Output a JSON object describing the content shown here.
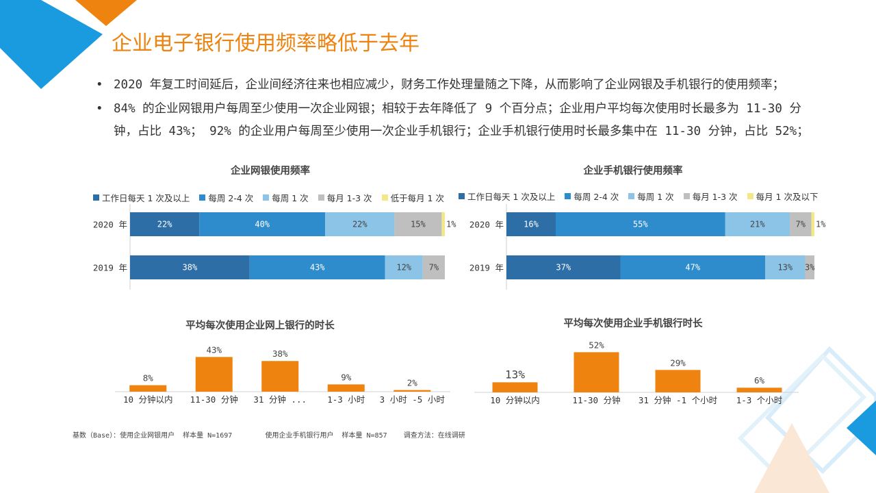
{
  "title": "企业电子银行使用频率略低于去年",
  "bullets": [
    {
      "dot": "•",
      "text": "2020 年复工时间延后，企业间经济往来也相应减少，财务工作处理量随之下降，从而影响了企业网银及手机银行的使用频率；"
    },
    {
      "dot": "•",
      "text": "84% 的企业网银用户每周至少使用一次企业网银；相较于去年降低了 9 个百分点；企业用户平均每次使用时长最多为 11-30 分钟，占比 43%； 92% 的企业用户每周至少使用一次企业手机银行；企业手机银行使用时长最多集中在 11-30 分钟，占比 52%；"
    }
  ],
  "colors": {
    "c1": "#2e6ea6",
    "c2": "#2e8bcc",
    "c3": "#8cc4e8",
    "c4": "#bfbfbf",
    "c5": "#f2e88a",
    "orange": "#ee8310"
  },
  "chart_data": [
    {
      "type": "bar",
      "orientation": "horizontal-stacked",
      "title": "企业网银使用频率",
      "categories": [
        "2020 年",
        "2019 年"
      ],
      "series": [
        {
          "name": "工作日每天 1 次及以上",
          "values": [
            22,
            38
          ],
          "labels": [
            "22%",
            "38%"
          ]
        },
        {
          "name": "每周 2-4 次",
          "values": [
            40,
            43
          ],
          "labels": [
            "40%",
            "43%"
          ]
        },
        {
          "name": "每周 1 次",
          "values": [
            22,
            12
          ],
          "labels": [
            "22%",
            "12%"
          ]
        },
        {
          "name": "每月 1-3 次",
          "values": [
            15,
            7
          ],
          "labels": [
            "15%",
            "7%"
          ]
        },
        {
          "name": "低于每月 1 次",
          "values": [
            1,
            0
          ],
          "labels": [
            "1%",
            ""
          ]
        }
      ]
    },
    {
      "type": "bar",
      "orientation": "horizontal-stacked",
      "title": "企业手机银行使用频率",
      "categories": [
        "2020 年",
        "2019 年"
      ],
      "series": [
        {
          "name": "工作日每天 1 次及以上",
          "values": [
            16,
            37
          ],
          "labels": [
            "16%",
            "37%"
          ]
        },
        {
          "name": "每周 2-4 次",
          "values": [
            55,
            47
          ],
          "labels": [
            "55%",
            "47%"
          ]
        },
        {
          "name": "每周 1 次",
          "values": [
            21,
            13
          ],
          "labels": [
            "21%",
            "13%"
          ]
        },
        {
          "name": "每月 1-3 次",
          "values": [
            7,
            3
          ],
          "labels": [
            "7%",
            "3%"
          ]
        },
        {
          "name": "每月 1 次及以下",
          "values": [
            1,
            0
          ],
          "labels": [
            "1%",
            ""
          ]
        }
      ]
    },
    {
      "type": "bar",
      "title": "平均每次使用企业网上银行的时长",
      "categories": [
        "10 分钟以内",
        "11-30 分钟",
        "31 分钟 ...",
        "1-3 小时",
        "3 小时 -5 小时"
      ],
      "values": [
        8,
        43,
        38,
        9,
        2
      ],
      "labels": [
        "8%",
        "43%",
        "38%",
        "9%",
        "2%"
      ],
      "ylim": [
        0,
        45
      ]
    },
    {
      "type": "bar",
      "title": "平均每次使用企业手机银行时长",
      "categories": [
        "10 分钟以内",
        "11-30 分钟",
        "31 分钟 -1 个小时",
        "1-3 个小时"
      ],
      "values": [
        13,
        52,
        29,
        6
      ],
      "labels": [
        "13%",
        "52%",
        "29%",
        "6%"
      ],
      "ylim": [
        0,
        55
      ]
    }
  ],
  "footnote": {
    "base": "基数（Base）：使用企业网银用户  样本量 N=1697",
    "base2": "使用企业手机银行用户  样本量 N=857",
    "method": "调查方法：在线调研"
  }
}
